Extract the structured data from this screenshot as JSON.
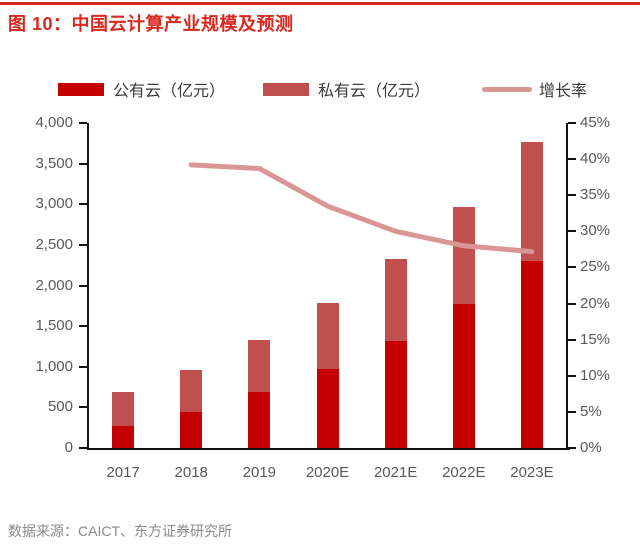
{
  "page": {
    "title": "图 10：中国云计算产业规模及预测",
    "source_note": "数据来源：CAICT、东方证券研究所"
  },
  "colors": {
    "accent_red": "#d9281e",
    "public_cloud_bar": "#c40000",
    "private_cloud_bar": "#c0504d",
    "growth_line": "#d99694",
    "axis_text": "#595959",
    "legend_text": "#3a3a3a",
    "source_text": "#8a8a8a",
    "axis_line": "#111111"
  },
  "legend": [
    {
      "label": "公有云（亿元）",
      "type": "bar-swatch",
      "color": "#c40000"
    },
    {
      "label": "私有云（亿元）",
      "type": "bar-swatch",
      "color": "#c0504d"
    },
    {
      "label": "增长率",
      "type": "line-swatch",
      "color": "#d99694"
    }
  ],
  "chart_data": {
    "type": "bar",
    "subtype": "stacked-bars-with-line",
    "title": "中国云计算产业规模及预测",
    "categories": [
      "2017",
      "2018",
      "2019",
      "2020E",
      "2021E",
      "2022E",
      "2023E"
    ],
    "series": [
      {
        "name": "公有云（亿元）",
        "type": "bar",
        "stack": "total",
        "axis": "left",
        "values": [
          265,
          437,
          689,
          975,
          1320,
          1770,
          2300
        ]
      },
      {
        "name": "私有云（亿元）",
        "type": "bar",
        "stack": "total",
        "axis": "left",
        "values": [
          427,
          525,
          645,
          810,
          1010,
          1200,
          1470
        ]
      },
      {
        "name": "增长率",
        "type": "line",
        "axis": "right",
        "unit": "%",
        "values": [
          null,
          39.2,
          38.7,
          33.5,
          30.0,
          28.0,
          27.2
        ]
      }
    ],
    "left_axis": {
      "min": 0,
      "max": 4000,
      "step": 500,
      "tick_labels": [
        "0",
        "500",
        "1,000",
        "1,500",
        "2,000",
        "2,500",
        "3,000",
        "3,500",
        "4,000"
      ]
    },
    "right_axis": {
      "min": 0,
      "max": 45,
      "step": 5,
      "tick_labels": [
        "0%",
        "5%",
        "10%",
        "15%",
        "20%",
        "25%",
        "30%",
        "35%",
        "40%",
        "45%"
      ]
    },
    "legend_position": "top",
    "grid": false
  }
}
